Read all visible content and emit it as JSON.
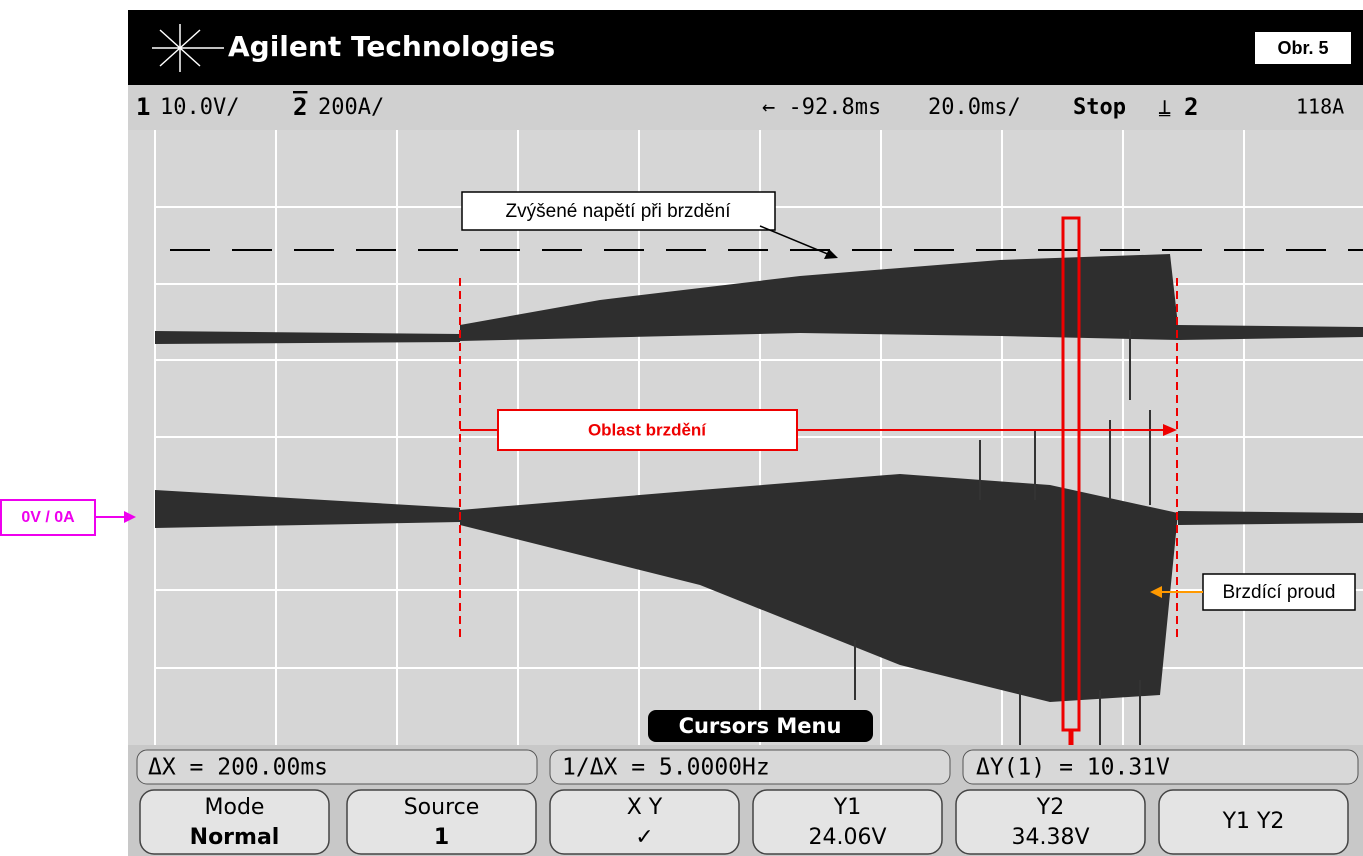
{
  "header": {
    "brand": "Agilent Technologies",
    "figure": "Obr. 5"
  },
  "status": {
    "channel1": "1",
    "ch1_scale": "10.0V/",
    "channel2": "2",
    "ch2_scale": "200A/",
    "delay": "← -92.8ms",
    "timebase": "20.0ms/",
    "run_state": "Stop",
    "trigger_source": "2",
    "trigger_level": "118A"
  },
  "annotations": {
    "overvoltage": "Zvýšené napětí při brzdění",
    "braking_region": "Oblast brzdění",
    "braking_current": "Brzdící proud",
    "zero_level": "0V / 0A"
  },
  "cursor_readout": {
    "delta_x": "ΔX = 200.00ms",
    "inverse_delta_x": "1/ΔX = 5.0000Hz",
    "delta_y": "ΔY(1) = 10.31V",
    "menu": "Cursors Menu"
  },
  "softkeys": [
    {
      "label": "Mode",
      "value": "Normal"
    },
    {
      "label": "Source",
      "value": "1"
    },
    {
      "label": "X   Y",
      "value": "✓"
    },
    {
      "label": "Y1",
      "value": "24.06V"
    },
    {
      "label": "Y2",
      "value": "34.38V"
    },
    {
      "label": "Y1  Y2",
      "value": ""
    }
  ]
}
